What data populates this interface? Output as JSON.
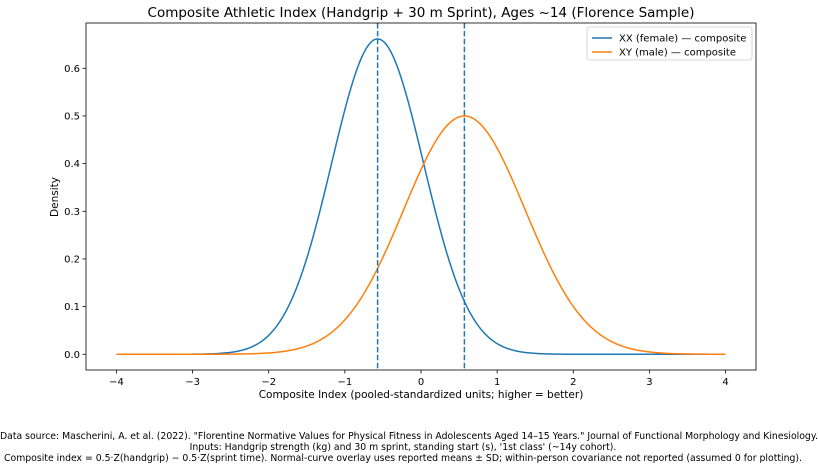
{
  "chart_data": {
    "type": "line",
    "title": "Composite Athletic Index (Handgrip + 30 m Sprint), Ages ~14 (Florence Sample)",
    "xlabel": "Composite Index (pooled-standardized units; higher = better)",
    "ylabel": "Density",
    "xlim": [
      -4.4,
      4.4
    ],
    "ylim": [
      -0.033,
      0.695
    ],
    "x_ticks": [
      -4,
      -3,
      -2,
      -1,
      0,
      1,
      2,
      3,
      4
    ],
    "y_ticks": [
      0.0,
      0.1,
      0.2,
      0.3,
      0.4,
      0.5,
      0.6
    ],
    "x_tick_labels": [
      "−4",
      "−3",
      "−2",
      "−1",
      "0",
      "1",
      "2",
      "3",
      "4"
    ],
    "y_tick_labels": [
      "0.0",
      "0.1",
      "0.2",
      "0.3",
      "0.4",
      "0.5",
      "0.6"
    ],
    "x_range": [
      -4,
      4
    ],
    "grid": false,
    "legend_position": "top-right",
    "series": [
      {
        "name": "XX (female) — composite",
        "color": "#1f77b4",
        "distribution": "normal",
        "mean": -0.57,
        "sd": 0.603,
        "peak_density": 0.66
      },
      {
        "name": "XY (male) — composite",
        "color": "#ff7f0e",
        "distribution": "normal",
        "mean": 0.57,
        "sd": 0.798,
        "peak_density": 0.5
      }
    ],
    "mean_lines": [
      {
        "series": "XX (female) — composite",
        "x": -0.57,
        "color": "#1f77b4",
        "style": "dashed"
      },
      {
        "series": "XY (male) — composite",
        "x": 0.57,
        "color": "#1f77b4",
        "style": "dashed"
      }
    ]
  },
  "caption": {
    "line1": "Data source: Mascherini, A. et al. (2022). \"Florentine Normative Values for Physical Fitness in Adolescents Aged 14–15 Years.\" Journal of Functional Morphology and Kinesiology.",
    "line2": "Inputs: Handgrip strength (kg) and 30 m sprint, standing start (s), '1st class' (~14y cohort).",
    "line3": "Composite index = 0.5·Z(handgrip) − 0.5·Z(sprint time). Normal-curve overlay uses reported means ± SD; within-person covariance not reported (assumed 0 for plotting)."
  }
}
